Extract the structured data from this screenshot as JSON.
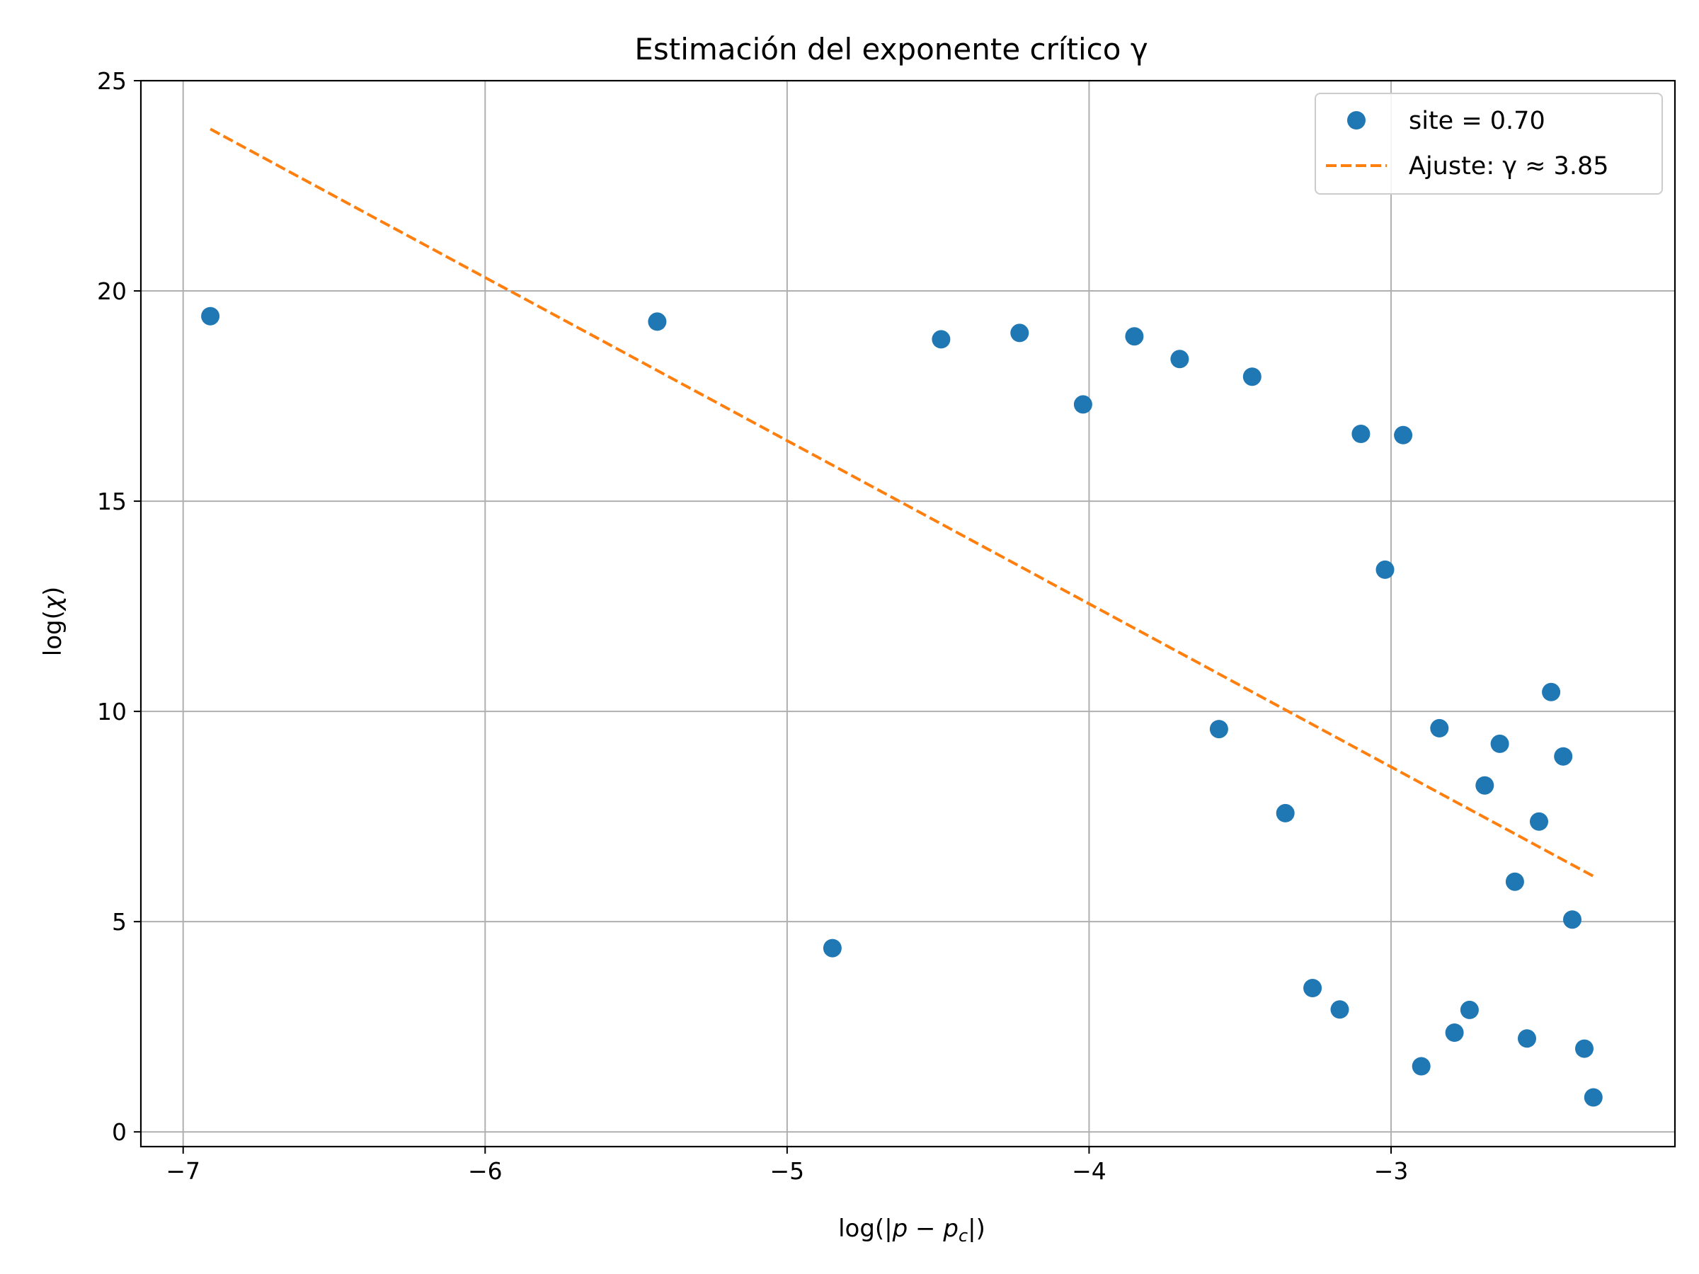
{
  "chart_data": {
    "type": "scatter",
    "title": "Estimación del exponente crítico γ",
    "xlabel": "log(|p − p_c|)",
    "ylabel": "log(χ)",
    "xlim": [
      -7.14,
      -2.06
    ],
    "ylim": [
      -0.35,
      25
    ],
    "xticks": [
      -7,
      -6,
      -5,
      -4,
      -3
    ],
    "xtick_labels": [
      "−7",
      "−6",
      "−5",
      "−4",
      "−3"
    ],
    "yticks": [
      0,
      5,
      10,
      15,
      20,
      25
    ],
    "ytick_labels": [
      "0",
      "5",
      "10",
      "15",
      "20",
      "25"
    ],
    "grid": true,
    "legend_position": "top-right",
    "series": [
      {
        "name": "site = 0.70",
        "kind": "scatter",
        "color": "#1f77b4",
        "points": [
          {
            "x": -6.91,
            "y": 19.4
          },
          {
            "x": -5.43,
            "y": 19.27
          },
          {
            "x": -4.85,
            "y": 4.37
          },
          {
            "x": -4.49,
            "y": 18.85
          },
          {
            "x": -4.23,
            "y": 19.0
          },
          {
            "x": -4.02,
            "y": 17.3
          },
          {
            "x": -3.85,
            "y": 18.92
          },
          {
            "x": -3.7,
            "y": 18.38
          },
          {
            "x": -3.57,
            "y": 9.58
          },
          {
            "x": -3.46,
            "y": 17.96
          },
          {
            "x": -3.35,
            "y": 7.58
          },
          {
            "x": -3.26,
            "y": 3.42
          },
          {
            "x": -3.17,
            "y": 2.91
          },
          {
            "x": -3.1,
            "y": 16.6
          },
          {
            "x": -3.02,
            "y": 13.37
          },
          {
            "x": -2.96,
            "y": 16.57
          },
          {
            "x": -2.9,
            "y": 1.56
          },
          {
            "x": -2.84,
            "y": 9.6
          },
          {
            "x": -2.79,
            "y": 2.36
          },
          {
            "x": -2.74,
            "y": 2.9
          },
          {
            "x": -2.69,
            "y": 8.24
          },
          {
            "x": -2.64,
            "y": 9.23
          },
          {
            "x": -2.59,
            "y": 5.95
          },
          {
            "x": -2.55,
            "y": 2.22
          },
          {
            "x": -2.51,
            "y": 7.38
          },
          {
            "x": -2.47,
            "y": 10.46
          },
          {
            "x": -2.43,
            "y": 8.93
          },
          {
            "x": -2.4,
            "y": 5.05
          },
          {
            "x": -2.36,
            "y": 1.98
          },
          {
            "x": -2.33,
            "y": 0.82
          }
        ]
      },
      {
        "name": "Ajuste: γ ≈ 3.85",
        "kind": "line",
        "style": "dashed",
        "color": "#ff7f0e",
        "points": [
          {
            "x": -6.91,
            "y": 23.85
          },
          {
            "x": -2.33,
            "y": 6.08
          }
        ]
      }
    ]
  }
}
